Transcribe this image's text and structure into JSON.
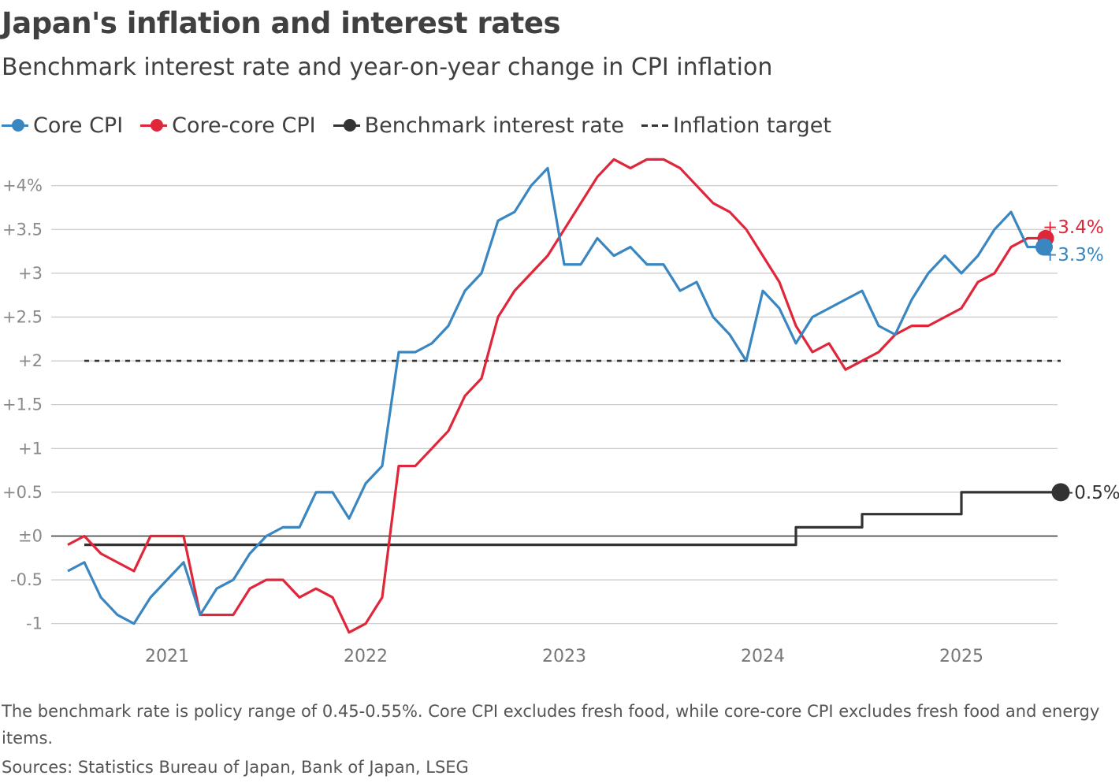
{
  "header": {
    "title": "Japan's inflation and interest rates",
    "subtitle": "Benchmark interest rate and year-on-year change in CPI inflation"
  },
  "legend": [
    {
      "label": "Core CPI",
      "color": "#3a86c0",
      "style": "line-dot"
    },
    {
      "label": "Core-core CPI",
      "color": "#e0263a",
      "style": "line-dot"
    },
    {
      "label": "Benchmark interest rate",
      "color": "#333333",
      "style": "line-dot"
    },
    {
      "label": "Inflation target",
      "color": "#333333",
      "style": "dashed"
    }
  ],
  "footer": {
    "note": "The benchmark rate is policy range of 0.45-0.55%. Core CPI excludes fresh food, while core-core CPI excludes fresh food and energy items.",
    "source": "Sources: Statistics Bureau of Japan, Bank of Japan, LSEG"
  },
  "chart_data": {
    "type": "line",
    "x_axis": {
      "start": "2020-07",
      "end": "2025-06",
      "tick_labels": [
        "2021",
        "2022",
        "2023",
        "2024",
        "2025"
      ]
    },
    "y_axis": {
      "ylim": [
        -1.2,
        4.4
      ],
      "ticks": [
        4,
        3.5,
        3,
        2.5,
        2,
        1.5,
        1,
        0.5,
        0,
        -0.5,
        -1
      ],
      "tick_labels": [
        "+4%",
        "+3.5",
        "+3",
        "+2.5",
        "+2",
        "+1.5",
        "+1",
        "+0.5",
        "±0",
        "-0.5",
        "-1"
      ]
    },
    "grid": true,
    "series": [
      {
        "name": "Core CPI",
        "color": "#3a86c0",
        "end_label": "+3.3%",
        "x": [
          "2020-07",
          "2020-08",
          "2020-09",
          "2020-10",
          "2020-11",
          "2020-12",
          "2021-01",
          "2021-02",
          "2021-03",
          "2021-04",
          "2021-05",
          "2021-06",
          "2021-07",
          "2021-08",
          "2021-09",
          "2021-10",
          "2021-11",
          "2021-12",
          "2022-01",
          "2022-02",
          "2022-03",
          "2022-04",
          "2022-05",
          "2022-06",
          "2022-07",
          "2022-08",
          "2022-09",
          "2022-10",
          "2022-11",
          "2022-12",
          "2023-01",
          "2023-02",
          "2023-03",
          "2023-04",
          "2023-05",
          "2023-06",
          "2023-07",
          "2023-08",
          "2023-09",
          "2023-10",
          "2023-11",
          "2023-12",
          "2024-01",
          "2024-02",
          "2024-03",
          "2024-04",
          "2024-05",
          "2024-06",
          "2024-07",
          "2024-08",
          "2024-09",
          "2024-10",
          "2024-11",
          "2024-12",
          "2025-01",
          "2025-02",
          "2025-03",
          "2025-04",
          "2025-05",
          "2025-06"
        ],
        "values": [
          -0.4,
          -0.3,
          -0.7,
          -0.9,
          -1.0,
          -0.7,
          -0.5,
          -0.3,
          -0.9,
          -0.6,
          -0.5,
          -0.2,
          0.0,
          0.1,
          0.1,
          0.5,
          0.5,
          0.2,
          0.6,
          0.8,
          2.1,
          2.1,
          2.2,
          2.4,
          2.8,
          3.0,
          3.6,
          3.7,
          4.0,
          4.2,
          3.1,
          3.1,
          3.4,
          3.2,
          3.3,
          3.1,
          3.1,
          2.8,
          2.9,
          2.5,
          2.3,
          2.0,
          2.8,
          2.6,
          2.2,
          2.5,
          2.6,
          2.7,
          2.8,
          2.4,
          2.3,
          2.7,
          3.0,
          3.2,
          3.0,
          3.2,
          3.5,
          3.7,
          3.3,
          3.3
        ]
      },
      {
        "name": "Core-core CPI",
        "color": "#e0263a",
        "end_label": "+3.4%",
        "x": [
          "2020-07",
          "2020-08",
          "2020-09",
          "2020-10",
          "2020-11",
          "2020-12",
          "2021-01",
          "2021-02",
          "2021-03",
          "2021-04",
          "2021-05",
          "2021-06",
          "2021-07",
          "2021-08",
          "2021-09",
          "2021-10",
          "2021-11",
          "2021-12",
          "2022-01",
          "2022-02",
          "2022-03",
          "2022-04",
          "2022-05",
          "2022-06",
          "2022-07",
          "2022-08",
          "2022-09",
          "2022-10",
          "2022-11",
          "2022-12",
          "2023-01",
          "2023-02",
          "2023-03",
          "2023-04",
          "2023-05",
          "2023-06",
          "2023-07",
          "2023-08",
          "2023-09",
          "2023-10",
          "2023-11",
          "2023-12",
          "2024-01",
          "2024-02",
          "2024-03",
          "2024-04",
          "2024-05",
          "2024-06",
          "2024-07",
          "2024-08",
          "2024-09",
          "2024-10",
          "2024-11",
          "2024-12",
          "2025-01",
          "2025-02",
          "2025-03",
          "2025-04",
          "2025-05",
          "2025-06"
        ],
        "values": [
          -0.1,
          0.0,
          -0.2,
          -0.3,
          -0.4,
          0.0,
          0.0,
          0.0,
          -0.9,
          -0.9,
          -0.9,
          -0.6,
          -0.5,
          -0.5,
          -0.7,
          -0.6,
          -0.7,
          -1.1,
          -1.0,
          -0.7,
          0.8,
          0.8,
          1.0,
          1.2,
          1.6,
          1.8,
          2.5,
          2.8,
          3.0,
          3.2,
          3.5,
          3.8,
          4.1,
          4.3,
          4.2,
          4.3,
          4.3,
          4.2,
          4.0,
          3.8,
          3.7,
          3.5,
          3.2,
          2.9,
          2.4,
          2.1,
          2.2,
          1.9,
          2.0,
          2.1,
          2.3,
          2.4,
          2.4,
          2.5,
          2.6,
          2.9,
          3.0,
          3.3,
          3.4,
          3.4
        ]
      },
      {
        "name": "Benchmark interest rate",
        "color": "#333333",
        "end_label": "+0.5%",
        "shape": "step",
        "x": [
          "2020-08",
          "2024-03",
          "2024-07",
          "2025-01",
          "2025-07"
        ],
        "values": [
          -0.1,
          0.1,
          0.25,
          0.5,
          0.5
        ]
      },
      {
        "name": "Inflation target",
        "color": "#333333",
        "style": "dashed",
        "x": [
          "2020-08",
          "2025-07"
        ],
        "values": [
          2.0,
          2.0
        ]
      }
    ]
  }
}
